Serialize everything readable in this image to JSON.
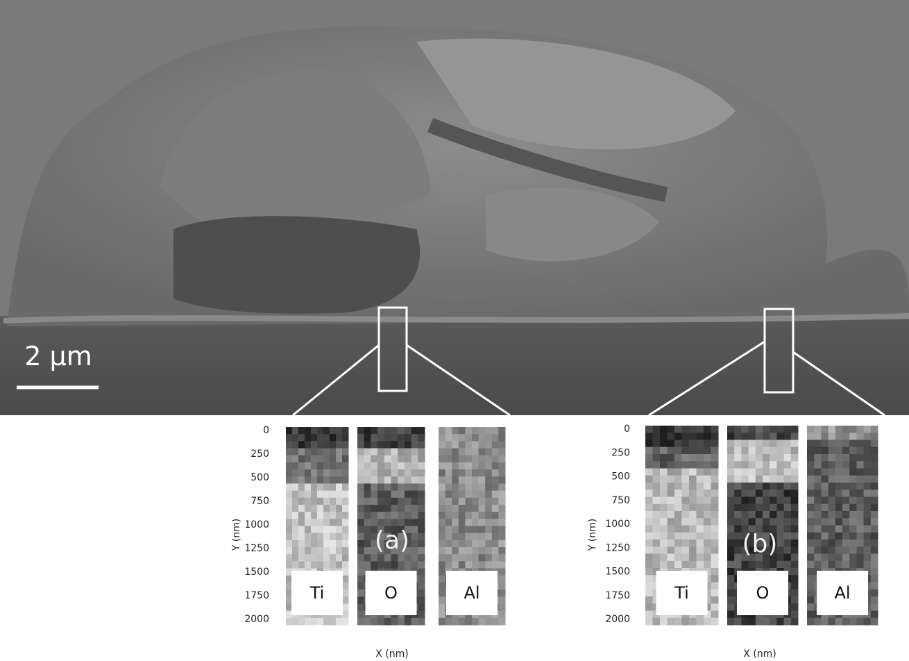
{
  "scale_bar": "2 µm",
  "panels": [
    {
      "label": "(a)",
      "y_axis_label": "Y (nm)",
      "x_axis_label": "X (nm)",
      "y_ticks": [
        0,
        250,
        500,
        750,
        1000,
        1250,
        1500,
        1750,
        2000
      ],
      "maps": [
        "Ti",
        "O",
        "Al"
      ]
    },
    {
      "label": "(b)",
      "y_axis_label": "Y (nm)",
      "x_axis_label": "X (nm)",
      "y_ticks": [
        0,
        250,
        500,
        750,
        1000,
        1250,
        1500,
        1750,
        2000
      ],
      "maps": [
        "Ti",
        "O",
        "Al"
      ]
    }
  ]
}
